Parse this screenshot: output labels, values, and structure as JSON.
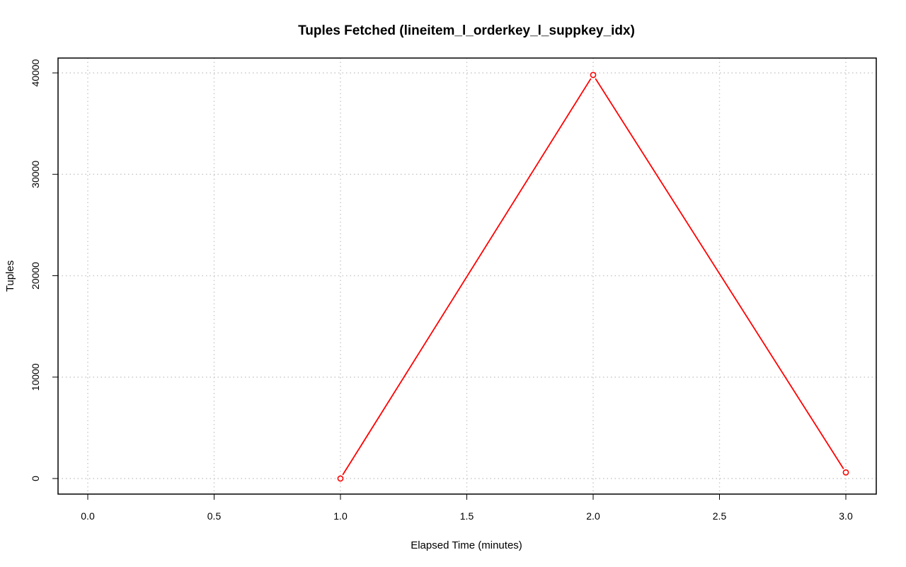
{
  "chart_data": {
    "type": "line",
    "title": "Tuples Fetched (lineitem_l_orderkey_l_suppkey_idx)",
    "xlabel": "Elapsed Time (minutes)",
    "ylabel": "Tuples",
    "xlim": [
      0,
      3
    ],
    "ylim": [
      0,
      40000
    ],
    "x_ticks": [
      0,
      0.5,
      1,
      1.5,
      2,
      2.5,
      3
    ],
    "x_tick_labels": [
      "0.0",
      "0.5",
      "1.0",
      "1.5",
      "2.0",
      "2.5",
      "3.0"
    ],
    "y_ticks": [
      0,
      10000,
      20000,
      30000,
      40000
    ],
    "y_tick_labels": [
      "0",
      "10000",
      "20000",
      "30000",
      "40000"
    ],
    "grid": true,
    "series": [
      {
        "color": "#ff0000",
        "marker": "open-circle",
        "x": [
          1,
          2,
          3
        ],
        "y": [
          0,
          39800,
          600
        ]
      }
    ]
  }
}
